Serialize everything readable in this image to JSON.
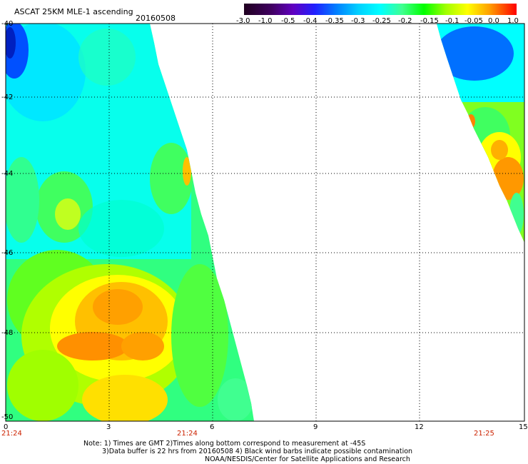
{
  "header": {
    "title": "ASCAT 25KM MLE-1 ascending",
    "date": "20160508"
  },
  "colorbar": {
    "labels": [
      "-3.0",
      "-1.0",
      "-0.5",
      "-0.4",
      "-0.35",
      "-0.3",
      "-0.25",
      "-0.2",
      "-0.15",
      "-0.1",
      "-0.05",
      "0.0",
      "1.0"
    ],
    "colors": [
      "#300030",
      "#500080",
      "#2020ff",
      "#0080ff",
      "#00c8ff",
      "#00ffff",
      "#40ff90",
      "#00ff00",
      "#a0ff00",
      "#ffff00",
      "#ffa000",
      "#ff5000",
      "#ff0000"
    ]
  },
  "axes": {
    "lat_labels": [
      "-40",
      "-42",
      "-44",
      "-46",
      "-48",
      "-50"
    ],
    "lon_labels": [
      "0",
      "3",
      "6",
      "9",
      "12",
      "15"
    ]
  },
  "times": {
    "t1": "21:24",
    "t2": "21:24",
    "t3": "21:25"
  },
  "notes": {
    "line1": "Note: 1) Times are GMT 2)Times along bottom correspond to measurement at -45S",
    "line2": "3)Data buffer is 22 hrs from 20160508 4) Black wind barbs indicate possible contamination",
    "line3": "NOAA/NESDIS/Center for Satellite Applications and Research"
  }
}
